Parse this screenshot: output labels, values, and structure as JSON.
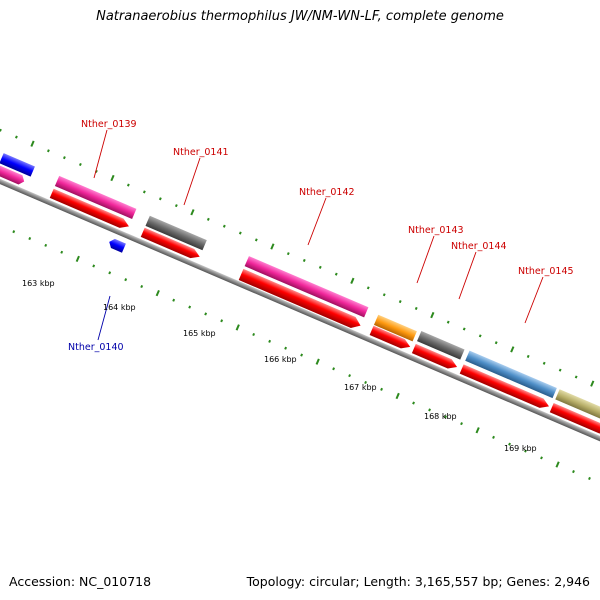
{
  "title": "Natranaerobius thermophilus JW/NM-WN-LF, complete genome",
  "footer": {
    "accession": "Accession: NC_010718",
    "summary": "Topology: circular; Length: 3,165,557 bp; Genes: 2,946"
  },
  "colors": {
    "label_top": "#cc0000",
    "label_bottom": "#0000aa",
    "backbone": "#888888",
    "tick": "#2d8a1e",
    "magenta": "#f0269a",
    "gray": "#707070",
    "red": "#ff0000",
    "blue": "#0000ff",
    "orange": "#ff9a10",
    "steelblue": "#4f8fc8",
    "khaki": "#b9b06a"
  },
  "scale_labels": [
    "163 kbp",
    "164 kbp",
    "165 kbp",
    "166 kbp",
    "167 kbp",
    "168 kbp",
    "169 kbp"
  ],
  "gene_labels": [
    {
      "text": "Nther_0139",
      "strand": "top"
    },
    {
      "text": "Nther_0140",
      "strand": "bottom"
    },
    {
      "text": "Nther_0141",
      "strand": "top"
    },
    {
      "text": "Nther_0142",
      "strand": "top"
    },
    {
      "text": "Nther_0143",
      "strand": "top"
    },
    {
      "text": "Nther_0144",
      "strand": "top"
    },
    {
      "text": "Nther_0145",
      "strand": "top"
    }
  ]
}
